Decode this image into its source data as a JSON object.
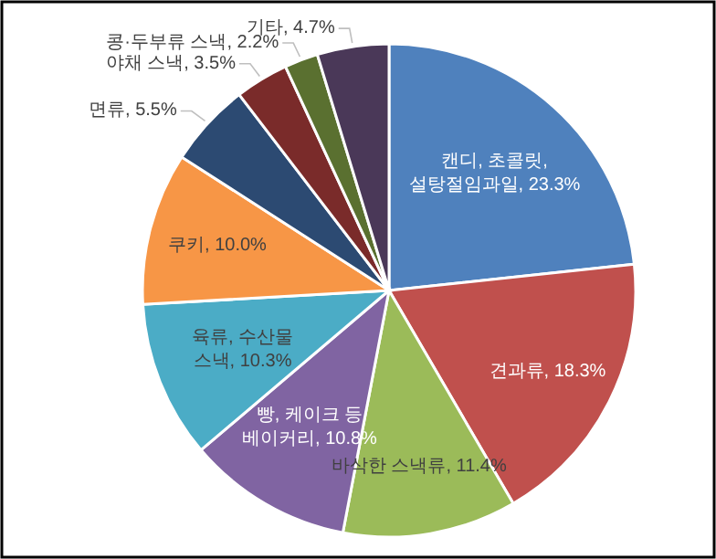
{
  "chart_data": {
    "type": "pie",
    "categories": [
      "캔디, 초콜릿, 설탕절임과일",
      "견과류",
      "바삭한 스낵류",
      "빵, 케이크 등 베이커리",
      "육류, 수산물 스낵",
      "쿠키",
      "면류",
      "야채 스낵",
      "콩·두부류 스낵",
      "기타"
    ],
    "values": [
      23.3,
      18.3,
      11.4,
      10.8,
      10.3,
      10.0,
      5.5,
      3.5,
      2.2,
      4.7
    ],
    "value_labels": [
      "23.3%",
      "18.3%",
      "11.4%",
      "10.8%",
      "10.3%",
      "10.0%",
      "5.5%",
      "3.5%",
      "2.2%",
      "4.7%"
    ],
    "colors": [
      "#4f81bd",
      "#c0504d",
      "#9bbb59",
      "#8064a2",
      "#4bacc6",
      "#f79646",
      "#2c4a72",
      "#7a2b2a",
      "#5a7030",
      "#4a3858"
    ]
  }
}
